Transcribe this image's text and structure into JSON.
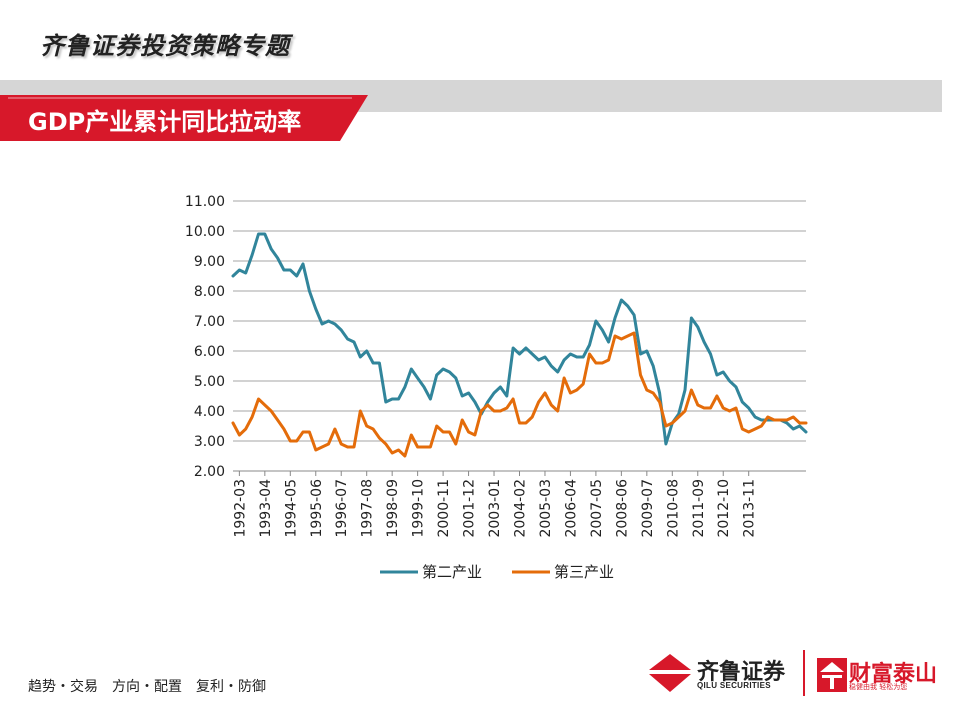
{
  "header": {
    "series_title": "齐鲁证券投资策略专题",
    "slide_title": "GDP产业累计同比拉动率"
  },
  "footer": {
    "slogan": "趋势・交易　方向・配置　复利・防御",
    "logo_1_name": "齐鲁证券",
    "logo_1_sub": "QILU SECURITIES",
    "logo_2_name": "财富泰山",
    "logo_2_sub": "稳健由我  轻松为您"
  },
  "colors": {
    "brand_red": "#d7182a",
    "series_secondary": "#31859b",
    "series_tertiary": "#e46c0a"
  },
  "chart_data": {
    "type": "line",
    "title": "",
    "xlabel": "",
    "ylabel": "",
    "ylim": [
      2.0,
      11.0
    ],
    "ytick_step": 1.0,
    "yticks": [
      "11.00",
      "10.00",
      "9.00",
      "8.00",
      "7.00",
      "6.00",
      "5.00",
      "4.00",
      "3.00",
      "2.00"
    ],
    "xtick_labels": [
      "1992-03",
      "1993-04",
      "1994-05",
      "1995-06",
      "1996-07",
      "1997-08",
      "1998-09",
      "1999-10",
      "2000-11",
      "2001-12",
      "2003-01",
      "2004-02",
      "2005-03",
      "2006-04",
      "2007-05",
      "2008-06",
      "2009-07",
      "2010-08",
      "2011-09",
      "2012-10",
      "2013-11"
    ],
    "xtick_every": 4,
    "grid": "horizontal",
    "legend_position": "bottom",
    "series": [
      {
        "name": "第二产业",
        "color": "#31859b",
        "values": [
          8.5,
          8.7,
          8.6,
          9.2,
          9.9,
          9.9,
          9.4,
          9.1,
          8.7,
          8.7,
          8.5,
          8.9,
          8.0,
          7.4,
          6.9,
          7.0,
          6.9,
          6.7,
          6.4,
          6.3,
          5.8,
          6.0,
          5.6,
          5.6,
          4.3,
          4.4,
          4.4,
          4.8,
          5.4,
          5.1,
          4.8,
          4.4,
          5.2,
          5.4,
          5.3,
          5.1,
          4.5,
          4.6,
          4.3,
          3.9,
          4.3,
          4.6,
          4.8,
          4.5,
          6.1,
          5.9,
          6.1,
          5.9,
          5.7,
          5.8,
          5.5,
          5.3,
          5.7,
          5.9,
          5.8,
          5.8,
          6.2,
          7.0,
          6.7,
          6.3,
          7.1,
          7.7,
          7.5,
          7.2,
          5.9,
          6.0,
          5.5,
          4.6,
          2.9,
          3.6,
          3.9,
          4.7,
          7.1,
          6.8,
          6.3,
          5.9,
          5.2,
          5.3,
          5.0,
          4.8,
          4.3,
          4.1,
          3.8,
          3.7,
          3.7,
          3.7,
          3.7,
          3.6,
          3.4,
          3.5,
          3.3
        ]
      },
      {
        "name": "第三产业",
        "color": "#e46c0a",
        "values": [
          3.6,
          3.2,
          3.4,
          3.8,
          4.4,
          4.2,
          4.0,
          3.7,
          3.4,
          3.0,
          3.0,
          3.3,
          3.3,
          2.7,
          2.8,
          2.9,
          3.4,
          2.9,
          2.8,
          2.8,
          4.0,
          3.5,
          3.4,
          3.1,
          2.9,
          2.6,
          2.7,
          2.5,
          3.2,
          2.8,
          2.8,
          2.8,
          3.5,
          3.3,
          3.3,
          2.9,
          3.7,
          3.3,
          3.2,
          4.0,
          4.2,
          4.0,
          4.0,
          4.1,
          4.4,
          3.6,
          3.6,
          3.8,
          4.3,
          4.6,
          4.2,
          4.0,
          5.1,
          4.6,
          4.7,
          4.9,
          5.9,
          5.6,
          5.6,
          5.7,
          6.5,
          6.4,
          6.5,
          6.6,
          5.2,
          4.7,
          4.6,
          4.3,
          3.5,
          3.6,
          3.8,
          4.0,
          4.7,
          4.2,
          4.1,
          4.1,
          4.5,
          4.1,
          4.0,
          4.1,
          3.4,
          3.3,
          3.4,
          3.5,
          3.8,
          3.7,
          3.7,
          3.7,
          3.8,
          3.6,
          3.6
        ]
      }
    ]
  }
}
